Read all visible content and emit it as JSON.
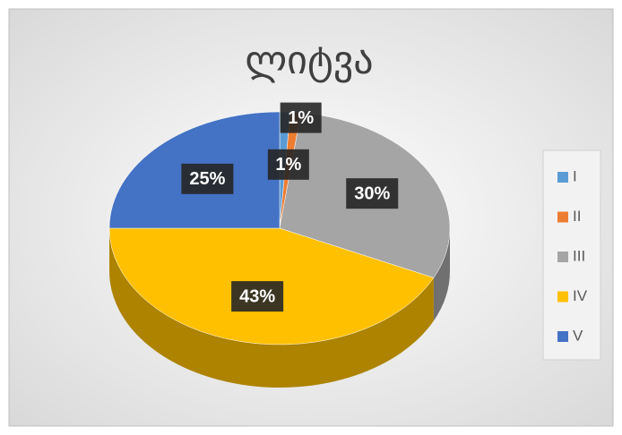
{
  "chart_data": {
    "type": "pie",
    "title": "ლიტვა",
    "categories": [
      "I",
      "II",
      "III",
      "IV",
      "V"
    ],
    "values": [
      1,
      1,
      30,
      43,
      25
    ],
    "value_labels": [
      "1%",
      "1%",
      "30%",
      "43%",
      "25%"
    ],
    "colors": [
      "#5b9bd5",
      "#ed7d31",
      "#a5a5a5",
      "#ffc000",
      "#4472c4"
    ],
    "legend": "right"
  }
}
